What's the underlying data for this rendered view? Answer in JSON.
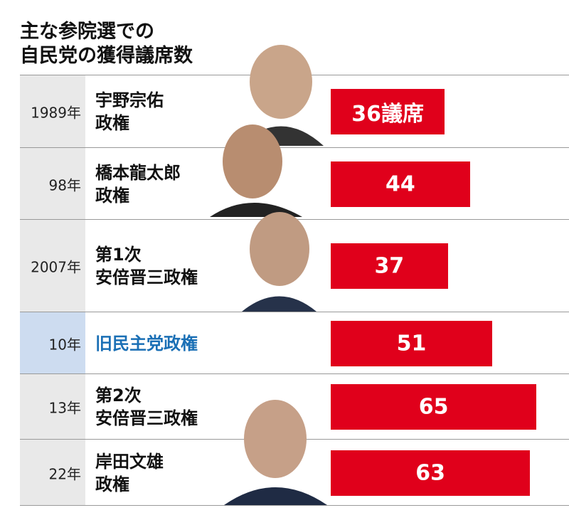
{
  "chart_data": {
    "type": "bar",
    "orientation": "horizontal",
    "title": "主な参院選での\n自民党の獲得議席数",
    "categories": [
      "1989年",
      "98年",
      "2007年",
      "10年",
      "13年",
      "22年"
    ],
    "governments": [
      "宇野宗佑\n政権",
      "橋本龍太郎\n政権",
      "第1次\n安倍晋三政権",
      "旧民主党政権",
      "第2次\n安倍晋三政権",
      "岸田文雄\n政権"
    ],
    "values": [
      36,
      44,
      37,
      51,
      65,
      63
    ],
    "value_labels": [
      "36議席",
      "44",
      "37",
      "51",
      "65",
      "63"
    ],
    "color": "#e0001b",
    "highlight": {
      "index": 3,
      "color": "#1a6fb5",
      "background": "#cddcf0"
    }
  }
}
